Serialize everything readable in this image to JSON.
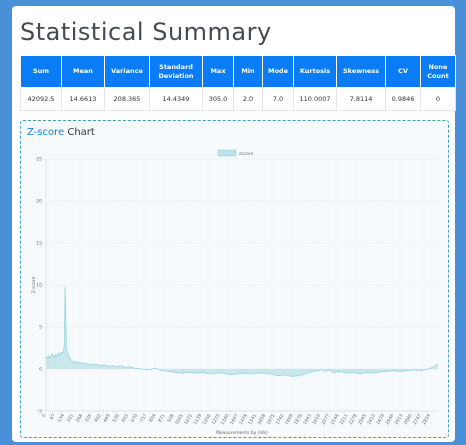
{
  "page": {
    "title": "Statistical Summary"
  },
  "stats": {
    "headers": [
      "Sum",
      "Mean",
      "Variance",
      "Standard Deviation",
      "Max",
      "Min",
      "Mode",
      "Kurtosis",
      "Skewness",
      "CV",
      "None Count"
    ],
    "values": [
      "42092.5",
      "14.6613",
      "208.365",
      "14.4349",
      "305.0",
      "2.0",
      "7.0",
      "110.0007",
      "7.8114",
      "0.9846",
      "0"
    ]
  },
  "chart_card": {
    "title_highlight": "Z-score",
    "title_rest": " Chart"
  },
  "chart_data": {
    "type": "area",
    "title": "",
    "xlabel": "Measurements by (Ids)",
    "ylabel": "Z-score",
    "legend": [
      "zscore"
    ],
    "legend_position": "top",
    "ylim": [
      -5,
      25
    ],
    "yticks": [
      -5,
      0,
      5,
      10,
      15,
      20,
      25
    ],
    "xticks": [
      "0",
      "67",
      "134",
      "201",
      "268",
      "335",
      "402",
      "469",
      "536",
      "603",
      "670",
      "737",
      "804",
      "871",
      "938",
      "1005",
      "1072",
      "1139",
      "1206",
      "1273",
      "1340",
      "1407",
      "1474",
      "1541",
      "1608",
      "1675",
      "1742",
      "1809",
      "1876",
      "1943",
      "2010",
      "2077",
      "2144",
      "2211",
      "2278",
      "2345",
      "2412",
      "2479",
      "2546",
      "2613",
      "2680",
      "2747",
      "2814"
    ],
    "x_max": 2871,
    "series": [
      {
        "name": "zscore",
        "color": "#8fd3d9",
        "x": [
          0,
          10,
          20,
          30,
          45,
          60,
          70,
          80,
          90,
          100,
          110,
          120,
          130,
          135,
          140,
          150,
          160,
          170,
          180,
          190,
          200,
          210,
          220,
          230,
          250,
          270,
          290,
          310,
          330,
          350,
          380,
          400,
          430,
          460,
          490,
          520,
          550,
          580,
          610,
          650,
          700,
          750,
          800,
          850,
          900,
          950,
          1000,
          1050,
          1100,
          1150,
          1200,
          1250,
          1300,
          1350,
          1400,
          1450,
          1500,
          1550,
          1600,
          1650,
          1700,
          1750,
          1800,
          1850,
          1900,
          1950,
          2000,
          2020,
          2040,
          2060,
          2080,
          2100,
          2150,
          2200,
          2250,
          2300,
          2350,
          2400,
          2450,
          2500,
          2550,
          2600,
          2650,
          2700,
          2750,
          2800,
          2830,
          2850,
          2871
        ],
        "y": [
          1.5,
          1.3,
          1.6,
          1.2,
          1.8,
          1.4,
          1.7,
          1.5,
          1.9,
          1.6,
          2.0,
          1.8,
          2.3,
          3.0,
          9.8,
          2.6,
          1.9,
          1.4,
          1.2,
          1.0,
          0.9,
          0.8,
          0.9,
          0.7,
          0.8,
          0.6,
          0.7,
          0.6,
          0.5,
          0.6,
          0.5,
          0.4,
          0.5,
          0.3,
          0.4,
          0.3,
          0.4,
          0.2,
          0.3,
          0.1,
          0.0,
          -0.1,
          0.1,
          -0.2,
          -0.3,
          -0.4,
          -0.5,
          -0.4,
          -0.5,
          -0.4,
          -0.6,
          -0.5,
          -0.5,
          -0.7,
          -0.6,
          -0.5,
          -0.6,
          -0.5,
          -0.5,
          -0.6,
          -0.8,
          -0.7,
          -0.9,
          -0.8,
          -0.6,
          -0.3,
          -0.2,
          0.0,
          -0.3,
          -0.2,
          -0.1,
          -0.4,
          -0.3,
          -0.5,
          -0.4,
          -0.6,
          -0.4,
          -0.5,
          -0.3,
          -0.3,
          -0.2,
          -0.3,
          -0.2,
          -0.1,
          -0.2,
          0.0,
          0.2,
          0.4,
          0.6
        ]
      }
    ]
  }
}
